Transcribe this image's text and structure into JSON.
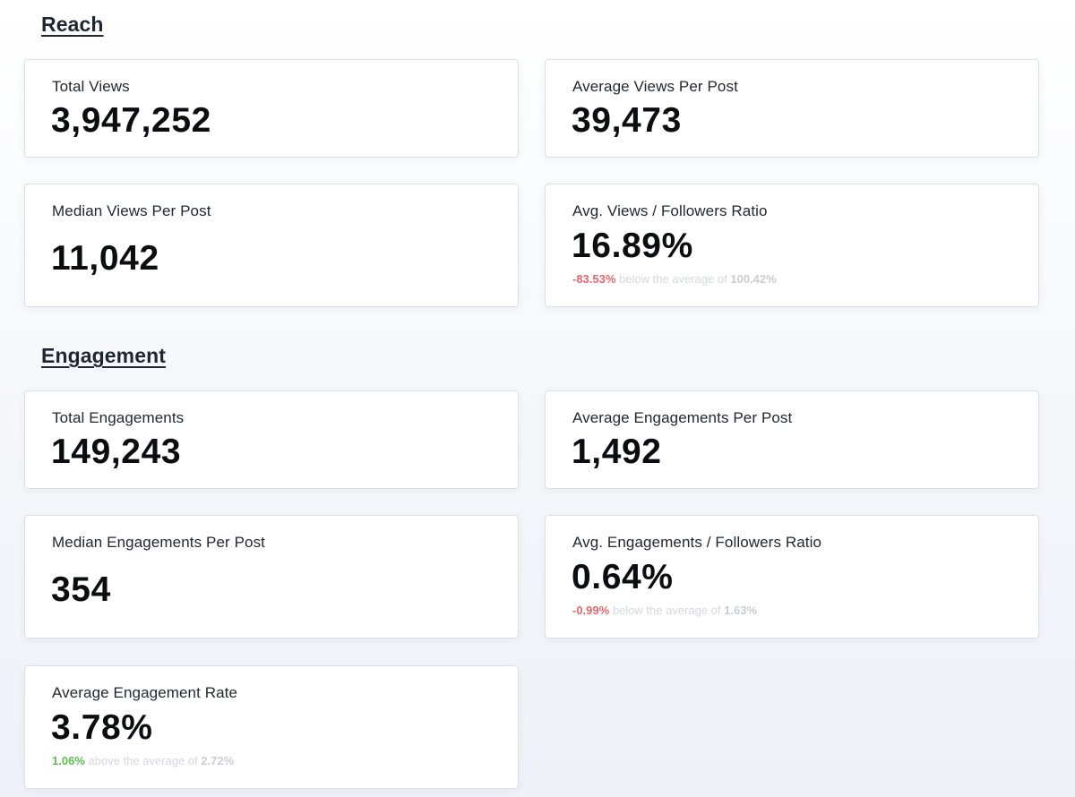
{
  "reach": {
    "title": "Reach",
    "total_views": {
      "label": "Total Views",
      "value": "3,947,252"
    },
    "avg_views_per_post": {
      "label": "Average Views Per Post",
      "value": "39,473"
    },
    "median_views_per_post": {
      "label": "Median Views Per Post",
      "value": "11,042"
    },
    "views_followers_ratio": {
      "label": "Avg. Views / Followers Ratio",
      "value": "16.89%",
      "delta": "-83.53%",
      "compare_text": "below the average of",
      "average": "100.42%"
    }
  },
  "engagement": {
    "title": "Engagement",
    "total_engagements": {
      "label": "Total Engagements",
      "value": "149,243"
    },
    "avg_engagements_per_post": {
      "label": "Average Engagements Per Post",
      "value": "1,492"
    },
    "median_engagements_per_post": {
      "label": "Median Engagements Per Post",
      "value": "354"
    },
    "engagements_followers_ratio": {
      "label": "Avg. Engagements / Followers Ratio",
      "value": "0.64%",
      "delta": "-0.99%",
      "compare_text": "below the average of",
      "average": "1.63%"
    },
    "avg_engagement_rate": {
      "label": "Average Engagement Rate",
      "value": "3.78%",
      "delta": "1.06%",
      "compare_text": "above the average of",
      "average": "2.72%"
    }
  },
  "colors": {
    "negative": "#e0686b",
    "positive": "#5cbf4f",
    "muted": "#cdd0d6",
    "card_border": "#dcdfe5"
  }
}
